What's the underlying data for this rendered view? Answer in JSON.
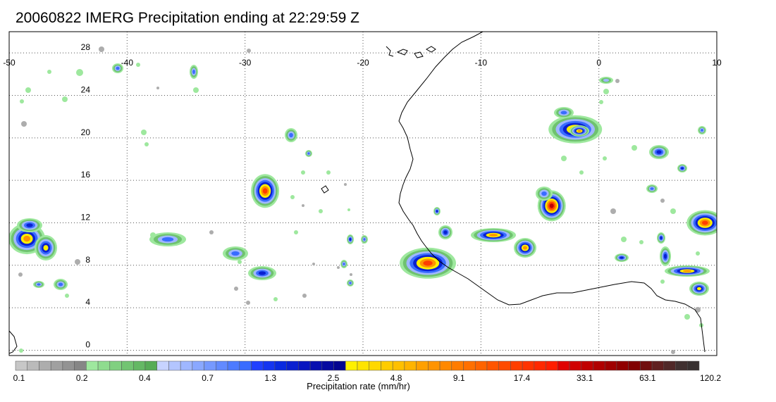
{
  "title": "20060822 IMERG Precipitation ending at 22:29:59 Z",
  "map": {
    "lon_labels": [
      "-50",
      "-40",
      "-30",
      "-20",
      "-10",
      "0",
      "10"
    ],
    "lat_labels": [
      "28",
      "24",
      "20",
      "16",
      "12",
      "8",
      "4",
      "0"
    ],
    "lon_values": [
      -50,
      -40,
      -30,
      -20,
      -10,
      0,
      10
    ],
    "lat_values": [
      28,
      24,
      20,
      16,
      12,
      8,
      4,
      0
    ],
    "lon_range": [
      -50,
      10
    ],
    "lat_range": [
      -0.5,
      30
    ],
    "gridlines": "dotted",
    "features": [
      {
        "name": "cluster-central-atlantic",
        "lon": -28.3,
        "lat": 15.0
      },
      {
        "name": "cluster-west-edge",
        "lon": -48.5,
        "lat": 10.5
      },
      {
        "name": "cluster-guinea-coast",
        "lon": -14.5,
        "lat": 8.2
      },
      {
        "name": "cluster-west-africa-north",
        "lon": -4.0,
        "lat": 13.6
      },
      {
        "name": "cluster-sahel-top",
        "lon": -2.0,
        "lat": 20.8
      },
      {
        "name": "cluster-nigeria",
        "lon": 9.0,
        "lat": 12.0
      }
    ]
  },
  "colorbar": {
    "caption": "Precipitation rate (mm/hr)",
    "labels": [
      "0.1",
      "0.2",
      "0.4",
      "0.7",
      "1.3",
      "2.5",
      "4.8",
      "9.1",
      "17.4",
      "33.1",
      "63.1",
      "120.2"
    ],
    "colors": [
      "#c7c7c7",
      "#bababa",
      "#adadad",
      "#a0a0a0",
      "#939393",
      "#868686",
      "#9ee89e",
      "#8fdc8f",
      "#80d080",
      "#72c472",
      "#64b864",
      "#56ac56",
      "#c7d3ff",
      "#b3c5ff",
      "#9fb7ff",
      "#8aa8ff",
      "#7699ff",
      "#628aff",
      "#4d7bff",
      "#396cff",
      "#2040ff",
      "#1535f0",
      "#0a2ae0",
      "#0a20d0",
      "#0816c0",
      "#0810b0",
      "#060aa0",
      "#040590",
      "#fff000",
      "#ffe400",
      "#ffd800",
      "#ffcc00",
      "#ffc000",
      "#ffb400",
      "#ffa000",
      "#ff9400",
      "#ff8800",
      "#ff7c00",
      "#ff7000",
      "#ff6400",
      "#ff5500",
      "#ff4a00",
      "#ff3f00",
      "#ff3400",
      "#ff2900",
      "#ff1e00",
      "#e00000",
      "#d00000",
      "#c00000",
      "#b00000",
      "#a00000",
      "#900000",
      "#800000",
      "#701010",
      "#602020",
      "#502828",
      "#403030",
      "#383030"
    ]
  }
}
